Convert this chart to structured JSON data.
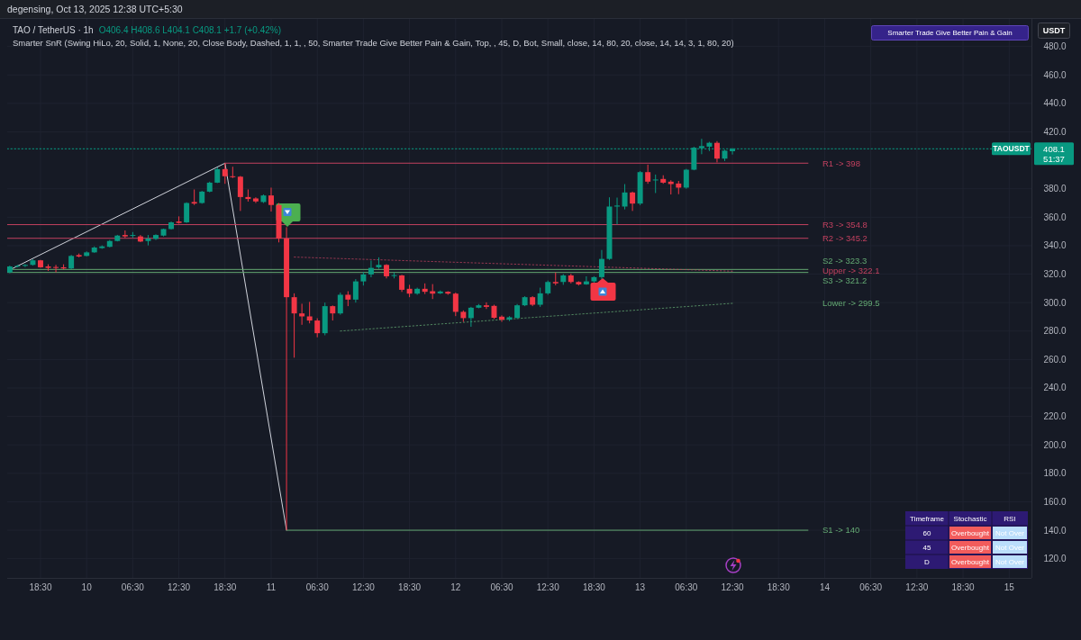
{
  "chart_data": [
    {
      "type": "candlestick",
      "title": "TAO / TetherUS · 1h",
      "subtitle": "Smarter SnR (Swing HiLo, 20, Solid, 1, None, 20, Close Body, Dashed, 1, 1, , 50, Smarter Trade Give Better Pain & Gain, Top, , 45, D, Bot, Small, close, 14, 80, 20, close, 14, 14, 3, 1, 80, 20)",
      "ylabel": "USDT",
      "annotations": [
        "degensing, Oct 13, 2025 12:38 UTC+5:30",
        "O406.4 H408.6 L404.1 C408.1 +1.7 (+0.42%)",
        "Smarter Trade Give Better Pain & Gain",
        "408.1",
        "51:37"
      ],
      "colors": [
        "#089981",
        "#089981",
        "#089981",
        "#089981",
        "#f23645",
        "#f23645",
        "#f23645",
        "#f23645",
        "#089981",
        "#f23645",
        "#089981",
        "#089981",
        "#089981",
        "#089981",
        "#089981",
        "#f23645",
        "#089981",
        "#f23645",
        "#089981",
        "#089981",
        "#089981",
        "#089981",
        "#f23645",
        "#089981",
        "#f23645",
        "#089981",
        "#089981",
        "#089981",
        "#f23645",
        "#f23645",
        "#f23645",
        "#f23645",
        "#f23645",
        "#089981",
        "#f23645",
        "#f23645",
        "#f23645",
        "#f23645",
        "#f23645",
        "#f23645",
        "#f23645",
        "#089981",
        "#f23645",
        "#089981",
        "#f23645",
        "#089981",
        "#089981",
        "#089981",
        "#089981",
        "#f23645",
        "#089981",
        "#f23645",
        "#f23645",
        "#089981",
        "#f23645",
        "#f23645",
        "#089981",
        "#f23645",
        "#f23645",
        "#f23645",
        "#089981",
        "#089981",
        "#f23645",
        "#f23645",
        "#f23645",
        "#089981",
        "#089981",
        "#089981",
        "#f23645",
        "#089981",
        "#089981",
        "#f23645",
        "#089981",
        "#f23645",
        "#f23645",
        "#089981",
        "#089981",
        "#089981",
        "#089981",
        "#089981",
        "#089981",
        "#f23645",
        "#089981",
        "#f23645",
        "#089981",
        "#f23645",
        "#f23645",
        "#f23645",
        "#089981",
        "#089981",
        "#089981",
        "#089981",
        "#f23645",
        "#089981",
        "#089981"
      ],
      "x": [
        "2025-10-09T14:30",
        "2025-10-09T15:30",
        "2025-10-09T16:30",
        "2025-10-09T17:30",
        "2025-10-09T18:30",
        "2025-10-09T19:30",
        "2025-10-09T20:30",
        "2025-10-09T21:30",
        "2025-10-09T22:30",
        "2025-10-09T23:30",
        "2025-10-10T00:30",
        "2025-10-10T01:30",
        "2025-10-10T02:30",
        "2025-10-10T03:30",
        "2025-10-10T04:30",
        "2025-10-10T05:30",
        "2025-10-10T06:30",
        "2025-10-10T07:30",
        "2025-10-10T08:30",
        "2025-10-10T09:30",
        "2025-10-10T10:30",
        "2025-10-10T11:30",
        "2025-10-10T12:30",
        "2025-10-10T13:30",
        "2025-10-10T14:30",
        "2025-10-10T15:30",
        "2025-10-10T16:30",
        "2025-10-10T17:30",
        "2025-10-10T18:30",
        "2025-10-10T19:30",
        "2025-10-10T20:30",
        "2025-10-10T21:30",
        "2025-10-10T22:30",
        "2025-10-10T23:30",
        "2025-10-11T00:30",
        "2025-10-11T01:30",
        "2025-10-11T02:30",
        "2025-10-11T03:30",
        "2025-10-11T04:30",
        "2025-10-11T05:30",
        "2025-10-11T06:30",
        "2025-10-11T07:30",
        "2025-10-11T08:30",
        "2025-10-11T09:30",
        "2025-10-11T10:30",
        "2025-10-11T11:30",
        "2025-10-11T12:30",
        "2025-10-11T13:30",
        "2025-10-11T14:30",
        "2025-10-11T15:30",
        "2025-10-11T16:30",
        "2025-10-11T17:30",
        "2025-10-11T18:30",
        "2025-10-11T19:30",
        "2025-10-11T20:30",
        "2025-10-11T21:30",
        "2025-10-11T22:30",
        "2025-10-11T23:30",
        "2025-10-12T00:30",
        "2025-10-12T01:30",
        "2025-10-12T02:30",
        "2025-10-12T03:30",
        "2025-10-12T04:30",
        "2025-10-12T05:30",
        "2025-10-12T06:30",
        "2025-10-12T07:30",
        "2025-10-12T08:30",
        "2025-10-12T09:30",
        "2025-10-12T10:30",
        "2025-10-12T11:30",
        "2025-10-12T12:30",
        "2025-10-12T13:30",
        "2025-10-12T14:30",
        "2025-10-12T15:30",
        "2025-10-12T16:30",
        "2025-10-12T17:30",
        "2025-10-12T18:30",
        "2025-10-12T19:30",
        "2025-10-12T20:30",
        "2025-10-12T21:30",
        "2025-10-12T22:30",
        "2025-10-12T23:30",
        "2025-10-13T00:30",
        "2025-10-13T01:30",
        "2025-10-13T02:30",
        "2025-10-13T03:30",
        "2025-10-13T04:30",
        "2025-10-13T05:30",
        "2025-10-13T06:30",
        "2025-10-13T07:30",
        "2025-10-13T08:30",
        "2025-10-13T09:30",
        "2025-10-13T10:30",
        "2025-10-13T11:30",
        "2025-10-13T12:30"
      ],
      "ohlc": [
        [
          321.2,
          326,
          320.6,
          325.4
        ],
        [
          325.4,
          326.5,
          324.8,
          325.8
        ],
        [
          325.8,
          327,
          325,
          326.5
        ],
        [
          326.5,
          330.5,
          326,
          329.7
        ],
        [
          329.7,
          330,
          324.5,
          324.8
        ],
        [
          325.4,
          326.9,
          322.3,
          324.4
        ],
        [
          325,
          326.5,
          321.2,
          324.4
        ],
        [
          324.8,
          326.9,
          323.3,
          324
        ],
        [
          324,
          333.5,
          323.5,
          332.8
        ],
        [
          333.4,
          334.5,
          331.8,
          332.4
        ],
        [
          332.8,
          336,
          332.5,
          335.3
        ],
        [
          335.3,
          339.5,
          335,
          338.7
        ],
        [
          338.3,
          340.2,
          337.8,
          339.5
        ],
        [
          339.2,
          344,
          338.8,
          343.3
        ],
        [
          343.3,
          347.6,
          343,
          347.1
        ],
        [
          347.5,
          350.7,
          345.4,
          346.5
        ],
        [
          346.9,
          349.6,
          345.4,
          347.5
        ],
        [
          346.5,
          347.5,
          342.5,
          342.9
        ],
        [
          343.3,
          347.5,
          340.2,
          345
        ],
        [
          344.8,
          348,
          344,
          347.5
        ],
        [
          347.1,
          352,
          346.5,
          351.7
        ],
        [
          351.7,
          357,
          351.3,
          356.4
        ],
        [
          357,
          360.6,
          355.5,
          356
        ],
        [
          356.4,
          370.5,
          356,
          370
        ],
        [
          370.7,
          379.5,
          368.6,
          369.6
        ],
        [
          370,
          378.5,
          369.5,
          378
        ],
        [
          378,
          385,
          377.5,
          384.3
        ],
        [
          384.3,
          395,
          384,
          393.8
        ],
        [
          393.8,
          398,
          383.5,
          388.8
        ],
        [
          388.8,
          395.5,
          387.5,
          388.3
        ],
        [
          388.5,
          389,
          364.4,
          374.2
        ],
        [
          374.2,
          379.5,
          371,
          372.8
        ],
        [
          373.2,
          374,
          370,
          371.1
        ],
        [
          370.7,
          376,
          370,
          375.3
        ],
        [
          375.3,
          380.8,
          364,
          368.6
        ],
        [
          368.6,
          370,
          342.3,
          345
        ],
        [
          345,
          353,
          140,
          303.8
        ],
        [
          303.8,
          306.5,
          261.3,
          292.4
        ],
        [
          292.4,
          299.2,
          284.4,
          290.3
        ],
        [
          290.3,
          300.5,
          285.4,
          287.4
        ],
        [
          287.4,
          289,
          275.6,
          278.5
        ],
        [
          278.5,
          300,
          277,
          297.5
        ],
        [
          297.5,
          298,
          287.4,
          292.4
        ],
        [
          292.4,
          307,
          291.5,
          305.5
        ],
        [
          305.5,
          308,
          297.5,
          302.1
        ],
        [
          302.1,
          316.5,
          300,
          314.9
        ],
        [
          314.9,
          321.5,
          312,
          319.8
        ],
        [
          319.8,
          329.6,
          317.8,
          324.4
        ],
        [
          324.8,
          331.8,
          323.8,
          326.5
        ],
        [
          326.5,
          327,
          317,
          318.5
        ],
        [
          319,
          321.2,
          317,
          319.3
        ],
        [
          319.1,
          319.5,
          307.5,
          309
        ],
        [
          309.7,
          312.5,
          303.8,
          306.3
        ],
        [
          306.3,
          310.5,
          305.5,
          309.7
        ],
        [
          309.7,
          313.5,
          306,
          307.6
        ],
        [
          308,
          313,
          302.5,
          306.3
        ],
        [
          306.5,
          308.5,
          306,
          307.8
        ],
        [
          307.6,
          308,
          305.5,
          306.3
        ],
        [
          306.3,
          307,
          290.5,
          293.5
        ],
        [
          293.5,
          294.5,
          286.5,
          289.1
        ],
        [
          289.1,
          297,
          283,
          296.4
        ],
        [
          296.4,
          299,
          296,
          298.1
        ],
        [
          298.1,
          300.2,
          295.5,
          297
        ],
        [
          297.7,
          298.5,
          288.5,
          289.3
        ],
        [
          290.1,
          291,
          286.5,
          288
        ],
        [
          288,
          290.5,
          287,
          289.7
        ],
        [
          289.3,
          299,
          288.5,
          298.1
        ],
        [
          298.1,
          304.5,
          297.5,
          303.8
        ],
        [
          303.8,
          304.5,
          297.5,
          298.5
        ],
        [
          298.5,
          310.5,
          297,
          306.5
        ],
        [
          306.5,
          315.5,
          305.5,
          314.5
        ],
        [
          314.5,
          321.2,
          312.2,
          313.5
        ],
        [
          314.5,
          320,
          312.5,
          319.1
        ],
        [
          319.1,
          320.2,
          313.5,
          314.5
        ],
        [
          314.5,
          315,
          312,
          312.8
        ],
        [
          312.8,
          318.5,
          312.5,
          314.9
        ],
        [
          314.9,
          318.5,
          314,
          317.9
        ],
        [
          317.9,
          337,
          316.5,
          330.7
        ],
        [
          330.7,
          374,
          330,
          367.5
        ],
        [
          367.5,
          373.8,
          354.9,
          368.2
        ],
        [
          367.5,
          383.3,
          365.5,
          377.4
        ],
        [
          377.4,
          378,
          364.4,
          369.6
        ],
        [
          369.6,
          392.5,
          368.5,
          391.7
        ],
        [
          391.7,
          397,
          383.5,
          385
        ],
        [
          386,
          390,
          377,
          386.5
        ],
        [
          386.9,
          389.5,
          383.5,
          384.3
        ],
        [
          385,
          386,
          376,
          383.3
        ],
        [
          383.7,
          385.5,
          376.2,
          380.8
        ],
        [
          380.8,
          394,
          380,
          393.4
        ],
        [
          393.4,
          409.5,
          393,
          408.9
        ],
        [
          408.5,
          415.1,
          404.3,
          410
        ],
        [
          409.6,
          413,
          406.5,
          412.3
        ],
        [
          412.3,
          413.5,
          398.5,
          401.2
        ],
        [
          401.2,
          407.5,
          399.5,
          406.8
        ],
        [
          406.4,
          408.6,
          404.1,
          408.1
        ]
      ],
      "series": [
        {
          "type": "line",
          "color": "#d1d4dc",
          "x": [
            "2025-10-09T14:30",
            "2025-10-10T18:30",
            "2025-10-11T02:30"
          ],
          "values": [
            323,
            398,
            140
          ]
        },
        {
          "type": "line",
          "name": "R1 -> 398",
          "color": "#c2405f",
          "x": [
            "2025-10-10T18:30",
            "2025-10-13T22:20"
          ],
          "values": [
            398,
            398
          ]
        },
        {
          "type": "line",
          "name": "R3 -> 354.8",
          "color": "#c2405f",
          "x": [
            "2025-10-09T14:10",
            "2025-10-13T22:20"
          ],
          "values": [
            354.8,
            354.8
          ]
        },
        {
          "type": "line",
          "name": "R2 -> 345.2",
          "color": "#c2405f",
          "x": [
            "2025-10-09T14:10",
            "2025-10-13T22:20"
          ],
          "values": [
            345.2,
            345.2
          ]
        },
        {
          "type": "line",
          "name": "S2 -> 323.3",
          "color": "#63a872",
          "x": [
            "2025-10-09T14:10",
            "2025-10-13T22:20"
          ],
          "values": [
            323.3,
            323.3
          ]
        },
        {
          "type": "line",
          "name": "S3 -> 321.2",
          "color": "#63a872",
          "x": [
            "2025-10-09T14:10",
            "2025-10-13T22:20"
          ],
          "values": [
            321.2,
            321.2
          ]
        },
        {
          "type": "line",
          "name": "S1 -> 140",
          "color": "#63a872",
          "x": [
            "2025-10-11T02:30",
            "2025-10-13T22:20"
          ],
          "values": [
            140,
            140
          ]
        },
        {
          "type": "line",
          "name": "Upper -> 322.1",
          "color": "#c2405f",
          "line_style": "dotted",
          "x": [
            "2025-10-11T03:30",
            "2025-10-13T12:30"
          ],
          "values": [
            332,
            322.1
          ]
        },
        {
          "type": "line",
          "name": "Lower -> 299.5",
          "color": "#63a872",
          "line_style": "dotted",
          "x": [
            "2025-10-11T09:30",
            "2025-10-13T12:30"
          ],
          "values": [
            280,
            299.5
          ]
        }
      ],
      "ref_lines": [
        {
          "axis": "y",
          "value": 408.1,
          "label": "TAOUSDT",
          "color": "#089981",
          "line_style": "dotted"
        }
      ],
      "xlim": [
        "2025-10-09T14:10",
        "2025-10-15T03:24"
      ],
      "xticks": [
        {
          "value": "2025-10-09T18:30",
          "label": "18:30"
        },
        {
          "value": "2025-10-10T00:30",
          "label": "10"
        },
        {
          "value": "2025-10-10T06:30",
          "label": "06:30"
        },
        {
          "value": "2025-10-10T12:30",
          "label": "12:30"
        },
        {
          "value": "2025-10-10T18:30",
          "label": "18:30"
        },
        {
          "value": "2025-10-11T00:30",
          "label": "11"
        },
        {
          "value": "2025-10-11T06:30",
          "label": "06:30"
        },
        {
          "value": "2025-10-11T12:30",
          "label": "12:30"
        },
        {
          "value": "2025-10-11T18:30",
          "label": "18:30"
        },
        {
          "value": "2025-10-12T00:30",
          "label": "12"
        },
        {
          "value": "2025-10-12T06:30",
          "label": "06:30"
        },
        {
          "value": "2025-10-12T12:30",
          "label": "12:30"
        },
        {
          "value": "2025-10-12T18:30",
          "label": "18:30"
        },
        {
          "value": "2025-10-13T00:30",
          "label": "13"
        },
        {
          "value": "2025-10-13T06:30",
          "label": "06:30"
        },
        {
          "value": "2025-10-13T12:30",
          "label": "12:30"
        },
        {
          "value": "2025-10-13T18:30",
          "label": "18:30"
        },
        {
          "value": "2025-10-14T00:30",
          "label": "14"
        },
        {
          "value": "2025-10-14T06:30",
          "label": "06:30"
        },
        {
          "value": "2025-10-14T12:30",
          "label": "12:30"
        },
        {
          "value": "2025-10-14T18:30",
          "label": "18:30"
        },
        {
          "value": "2025-10-15T00:30",
          "label": "15"
        }
      ],
      "ylim": [
        106.5,
        499.4
      ],
      "yticks": [
        {
          "value": 120,
          "label": "120.0"
        },
        {
          "value": 140,
          "label": "140.0"
        },
        {
          "value": 160,
          "label": "160.0"
        },
        {
          "value": 180,
          "label": "180.0"
        },
        {
          "value": 200,
          "label": "200.0"
        },
        {
          "value": 220,
          "label": "220.0"
        },
        {
          "value": 240,
          "label": "240.0"
        },
        {
          "value": 260,
          "label": "260.0"
        },
        {
          "value": 280,
          "label": "280.0"
        },
        {
          "value": 300,
          "label": "300.0"
        },
        {
          "value": 320,
          "label": "320.0"
        },
        {
          "value": 340,
          "label": "340.0"
        },
        {
          "value": 360,
          "label": "360.0"
        },
        {
          "value": 380,
          "label": "380.0"
        },
        {
          "value": 420,
          "label": "420.0"
        },
        {
          "value": 440,
          "label": "440.0"
        },
        {
          "value": 460,
          "label": "460.0"
        },
        {
          "value": 480,
          "label": "480.0"
        }
      ],
      "grid": true
    },
    {
      "type": "other",
      "ylabel": "Timeframe",
      "categories": [
        "Stochastic",
        "RSI"
      ],
      "y_categories": [
        "60",
        "45",
        "D"
      ],
      "cell_labels": [
        [
          "Overbought",
          "Not Over"
        ],
        [
          "Overbought",
          "Not Over"
        ],
        [
          "Overbought",
          "Not Over"
        ]
      ],
      "colors": [
        "#f25c5c",
        "#bbdefb"
      ]
    }
  ]
}
